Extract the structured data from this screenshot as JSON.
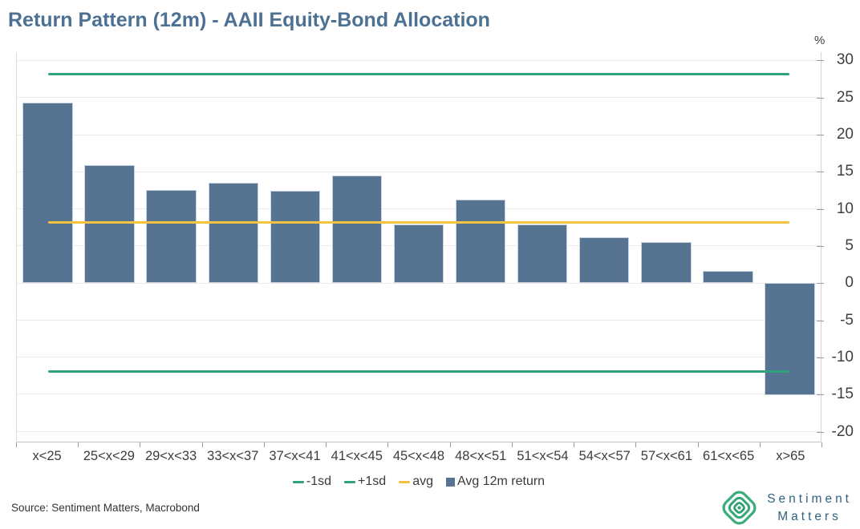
{
  "title": "Return Pattern (12m) - AAII Equity-Bond Allocation",
  "source": "Source: Sentiment Matters, Macrobond",
  "logo": {
    "line1": "Sentiment",
    "line2": "Matters"
  },
  "colors": {
    "bar": "#567391",
    "bar_edge": "#c9d4e0",
    "sd_line": "#2FA47C",
    "avg_line": "#F6C340",
    "title": "#4C7193",
    "logo_green": "#3CAE7C",
    "logo_text": "#2E6480",
    "gridline": "#ebebeb",
    "tick_text": "#3d3d3d"
  },
  "chart_data": {
    "type": "bar",
    "title": "Return Pattern (12m) - AAII Equity-Bond Allocation",
    "unit": "%",
    "categories": [
      "x<25",
      "25<x<29",
      "29<x<33",
      "33<x<37",
      "37<x<41",
      "41<x<45",
      "45<x<48",
      "48<x<51",
      "51<x<54",
      "54<x<57",
      "57<x<61",
      "61<x<65",
      "x>65"
    ],
    "series": [
      {
        "name": "Avg 12m return",
        "type": "bar",
        "color": "#567391",
        "values": [
          24.3,
          15.9,
          12.5,
          13.5,
          12.4,
          14.4,
          7.9,
          11.2,
          7.8,
          6.1,
          5.5,
          1.6,
          -15.2
        ]
      }
    ],
    "reference_lines": [
      {
        "name": "-1sd",
        "value": -12.0,
        "color": "#2FA47C"
      },
      {
        "name": "+1sd",
        "value": 28.1,
        "color": "#2FA47C"
      },
      {
        "name": "avg",
        "value": 8.1,
        "color": "#F6C340"
      }
    ],
    "legend": [
      {
        "label": "-1sd",
        "marker": "line",
        "color": "#2FA47C"
      },
      {
        "label": "+1sd",
        "marker": "line",
        "color": "#2FA47C"
      },
      {
        "label": "avg",
        "marker": "line",
        "color": "#F6C340"
      },
      {
        "label": "Avg 12m return",
        "marker": "square",
        "color": "#567391"
      }
    ],
    "ylim": [
      -20,
      30
    ],
    "yticks": [
      30,
      25,
      20,
      15,
      10,
      5,
      0,
      -5,
      -10,
      -15,
      -20
    ],
    "grid": "horizontal-only",
    "y_axis_side": "right",
    "legend_position": "bottom"
  }
}
